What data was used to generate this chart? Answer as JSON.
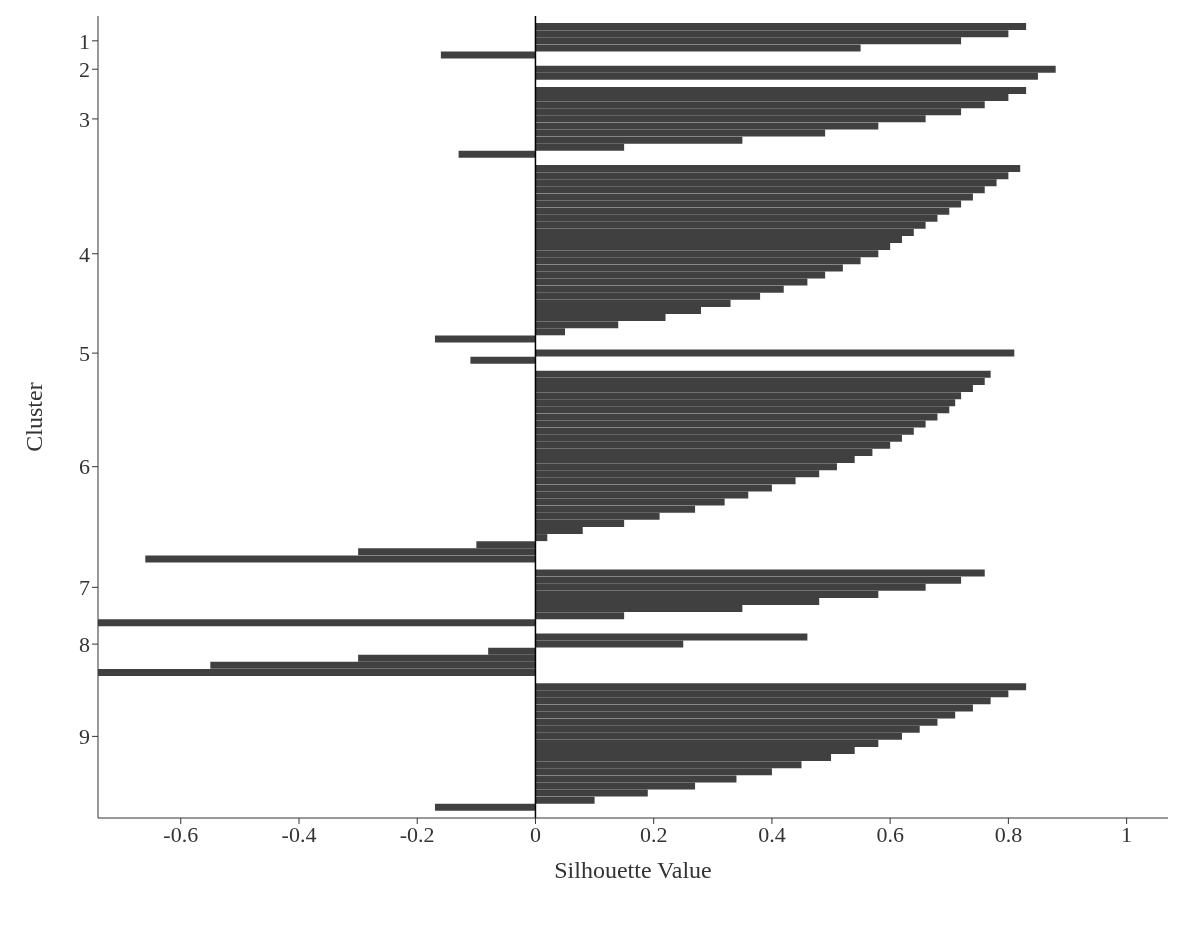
{
  "chart_data": {
    "type": "bar",
    "orientation": "horizontal",
    "xlabel": "Silhouette Value",
    "ylabel": "Cluster",
    "categories": [
      null,
      null,
      null,
      "1",
      null,
      null,
      null,
      "2",
      null,
      null,
      null,
      null,
      null,
      null,
      "3",
      null,
      null,
      null,
      null,
      null,
      null,
      null,
      null,
      null,
      null,
      null,
      null,
      null,
      null,
      null,
      null,
      null,
      null,
      "4",
      null,
      null,
      null,
      null,
      null,
      null,
      null,
      null,
      null,
      null,
      null,
      null,
      null,
      "5",
      null,
      null,
      null,
      null,
      null,
      null,
      null,
      null,
      null,
      null,
      null,
      null,
      null,
      null,
      null,
      "6",
      null,
      null,
      null,
      null,
      null,
      null,
      null,
      null,
      null,
      null,
      null,
      null,
      null,
      null,
      null,
      null,
      "7",
      null,
      null,
      null,
      null,
      null,
      null,
      null,
      "8",
      null,
      null,
      null,
      null,
      null,
      null,
      null,
      null,
      null,
      null,
      null,
      null,
      "9",
      null,
      null,
      null,
      null,
      null,
      null,
      null,
      null,
      null,
      null,
      null
    ],
    "values": [
      null,
      0.83,
      0.8,
      0.72,
      0.55,
      -0.16,
      null,
      0.88,
      0.85,
      null,
      0.83,
      0.8,
      0.76,
      0.72,
      0.66,
      0.58,
      0.49,
      0.35,
      0.15,
      -0.13,
      null,
      0.82,
      0.8,
      0.78,
      0.76,
      0.74,
      0.72,
      0.7,
      0.68,
      0.66,
      0.64,
      0.62,
      0.6,
      0.58,
      0.55,
      0.52,
      0.49,
      0.46,
      0.42,
      0.38,
      0.33,
      0.28,
      0.22,
      0.14,
      0.05,
      -0.17,
      null,
      0.81,
      -0.11,
      null,
      0.77,
      0.76,
      0.74,
      0.72,
      0.71,
      0.7,
      0.68,
      0.66,
      0.64,
      0.62,
      0.6,
      0.57,
      0.54,
      0.51,
      0.48,
      0.44,
      0.4,
      0.36,
      0.32,
      0.27,
      0.21,
      0.15,
      0.08,
      0.02,
      -0.1,
      -0.3,
      -0.66,
      null,
      0.76,
      0.72,
      0.66,
      0.58,
      0.48,
      0.35,
      0.15,
      -0.74,
      null,
      0.46,
      0.25,
      -0.08,
      -0.3,
      -0.55,
      -0.74,
      null,
      0.83,
      0.8,
      0.77,
      0.74,
      0.71,
      0.68,
      0.65,
      0.62,
      0.58,
      0.54,
      0.5,
      0.45,
      0.4,
      0.34,
      0.27,
      0.19,
      0.1,
      -0.17,
      null
    ],
    "color": "#404040",
    "xlim": [
      -0.74,
      1.07
    ],
    "xticks": [
      -0.6,
      -0.4,
      -0.2,
      0,
      0.2,
      0.4,
      0.6,
      0.8,
      1
    ],
    "ref_lines": [
      {
        "axis": "x",
        "value": 0,
        "color": "#000000"
      }
    ],
    "grid": false,
    "legend": false
  }
}
